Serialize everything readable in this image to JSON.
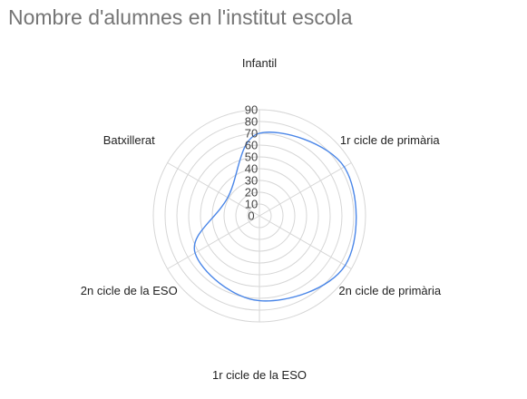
{
  "chart_data": {
    "type": "radar",
    "title": "Nombre d'alumnes en l'institut escola",
    "categories": [
      "Infantil",
      "1r cicle de primària",
      "2n cicle de primària",
      "1r cicle de la ESO",
      "2n cicle de la ESO",
      "Batxillerat"
    ],
    "series": [
      {
        "values": [
          70,
          83,
          84,
          72,
          63,
          31
        ],
        "color": "#4a86e8"
      }
    ],
    "ticks": [
      "0",
      "10",
      "20",
      "30",
      "40",
      "50",
      "60",
      "70",
      "80",
      "90"
    ],
    "range": [
      0,
      90
    ],
    "grid": true,
    "legend": "none"
  }
}
